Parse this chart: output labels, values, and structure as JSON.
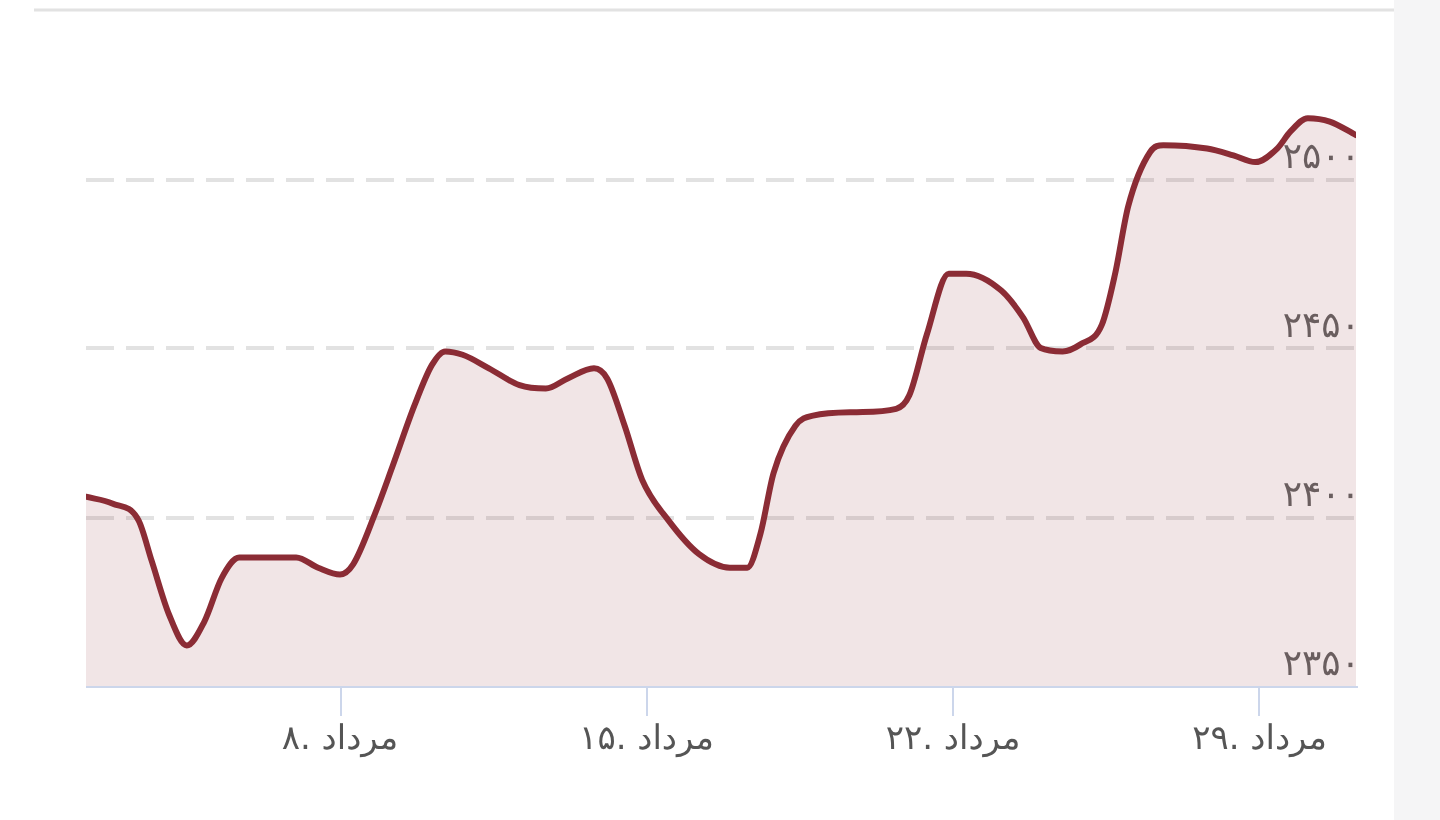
{
  "chart_data": {
    "type": "area",
    "x": [
      2.2,
      2.8,
      3.4,
      3.7,
      4.1,
      4.5,
      4.9,
      5.3,
      5.7,
      6.2,
      7,
      7.5,
      8,
      8.3,
      8.8,
      9.2,
      9.7,
      10.1,
      10.4,
      10.8,
      11.4,
      12.1,
      12.7,
      13.2,
      13.8,
      14.1,
      14.5,
      14.9,
      15.5,
      16.2,
      16.9,
      17.3,
      17.6,
      17.9,
      18.4,
      18.8,
      19.8,
      20.7,
      21,
      21.4,
      21.9,
      22.3,
      23.1,
      23.6,
      24,
      24.5,
      24.9,
      25.4,
      25.7,
      26,
      26.5,
      26.8,
      27.8,
      28.4,
      28.9,
      29.4,
      29.7,
      30.1,
      30.6,
      31.2
    ],
    "series": [
      {
        "color": "#8b2c35",
        "values": [
          2406,
          2404,
          2399,
          2387,
          2371,
          2362,
          2369,
          2382,
          2388,
          2388,
          2388,
          2385,
          2383,
          2386,
          2401,
          2415,
          2433,
          2445,
          2449,
          2448,
          2444,
          2439,
          2438,
          2441,
          2444,
          2441,
          2427,
          2411,
          2399,
          2389,
          2385,
          2385,
          2395,
          2413,
          2427,
          2430,
          2431,
          2432,
          2436,
          2454,
          2472,
          2472,
          2467,
          2459,
          2450,
          2449,
          2451,
          2457,
          2472,
          2492,
          2508,
          2510,
          2509,
          2507,
          2505,
          2509,
          2514,
          2518,
          2517,
          2513
        ]
      }
    ],
    "xlim": [
      2.2,
      31.2
    ],
    "xticks": [
      {
        "value": 8,
        "label": "۸. مرداد"
      },
      {
        "value": 15,
        "label": "۱۵. مرداد"
      },
      {
        "value": 22,
        "label": "۲۲. مرداد"
      },
      {
        "value": 29,
        "label": "۲۹. مرداد"
      }
    ],
    "ylim": [
      2350,
      2550
    ],
    "yticks": [
      {
        "value": 2350,
        "label": "۲۳۵۰"
      },
      {
        "value": 2400,
        "label": "۲۴۰۰"
      },
      {
        "value": 2450,
        "label": "۲۴۵۰"
      },
      {
        "value": 2500,
        "label": "۲۵۰۰"
      }
    ],
    "grid": "y"
  }
}
